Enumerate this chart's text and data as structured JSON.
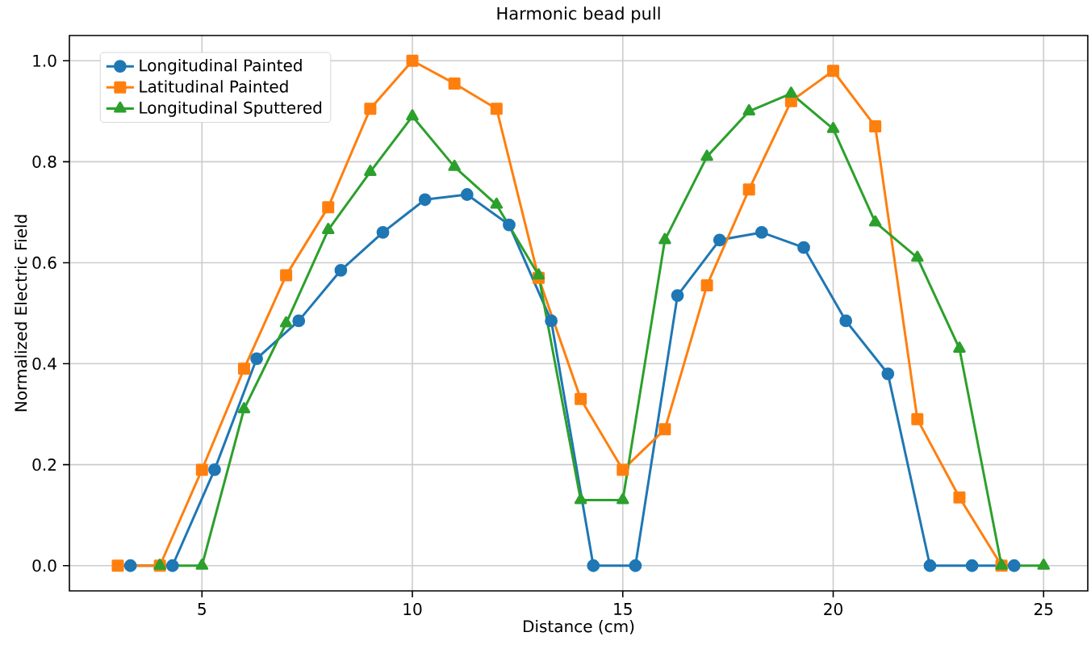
{
  "chart_data": {
    "type": "line",
    "title": "Harmonic bead pull",
    "xlabel": "Distance (cm)",
    "ylabel": "Normalized Electric Field",
    "xlim": [
      1.85,
      26.05
    ],
    "ylim": [
      -0.05,
      1.05
    ],
    "xticks": [
      5,
      10,
      15,
      20,
      25
    ],
    "yticks": [
      {
        "value": 0,
        "label": "0.0"
      },
      0.2,
      0.4,
      0.6,
      0.8,
      {
        "value": 1,
        "label": "1.0"
      }
    ],
    "grid": true,
    "legend": "top left",
    "line_style": "solid",
    "series": [
      {
        "name": "Longitudinal  Painted",
        "color": "#1f77b4",
        "marker": "circle",
        "x": [
          3.3,
          4.3,
          5.3,
          6.3,
          7.3,
          8.3,
          9.3,
          10.3,
          11.3,
          12.3,
          13.3,
          14.3,
          15.3,
          16.3,
          17.3,
          18.3,
          19.3,
          20.3,
          21.3,
          22.3,
          23.3,
          24.3
        ],
        "values": [
          0,
          0,
          0.19,
          0.41,
          0.485,
          0.585,
          0.66,
          0.725,
          0.735,
          0.675,
          0.485,
          0,
          0,
          0.535,
          0.645,
          0.66,
          0.63,
          0.485,
          0.38,
          0,
          0,
          0
        ]
      },
      {
        "name": "Latitudinal Painted",
        "color": "#ff7f0e",
        "marker": "square",
        "x": [
          3,
          4,
          5,
          6,
          7,
          8,
          9,
          10,
          11,
          12,
          13,
          14,
          15,
          16,
          17,
          18,
          19,
          20,
          21,
          22,
          23,
          24
        ],
        "values": [
          0,
          0,
          0.19,
          0.39,
          0.575,
          0.71,
          0.905,
          1.0,
          0.955,
          0.905,
          0.57,
          0.33,
          0.19,
          0.27,
          0.555,
          0.745,
          0.92,
          0.98,
          0.87,
          0.29,
          0.135,
          0
        ]
      },
      {
        "name": "Longitudinal Sputtered",
        "color": "#2ca02c",
        "marker": "triangle",
        "x": [
          4,
          5,
          6,
          7,
          8,
          9,
          10,
          11,
          12,
          13,
          14,
          15,
          16,
          17,
          18,
          19,
          20,
          21,
          22,
          23,
          24,
          25
        ],
        "values": [
          0,
          0,
          0.31,
          0.48,
          0.665,
          0.78,
          0.89,
          0.79,
          0.715,
          0.575,
          0.13,
          0.13,
          0.645,
          0.81,
          0.9,
          0.935,
          0.865,
          0.68,
          0.61,
          0.43,
          0,
          0
        ]
      }
    ]
  }
}
